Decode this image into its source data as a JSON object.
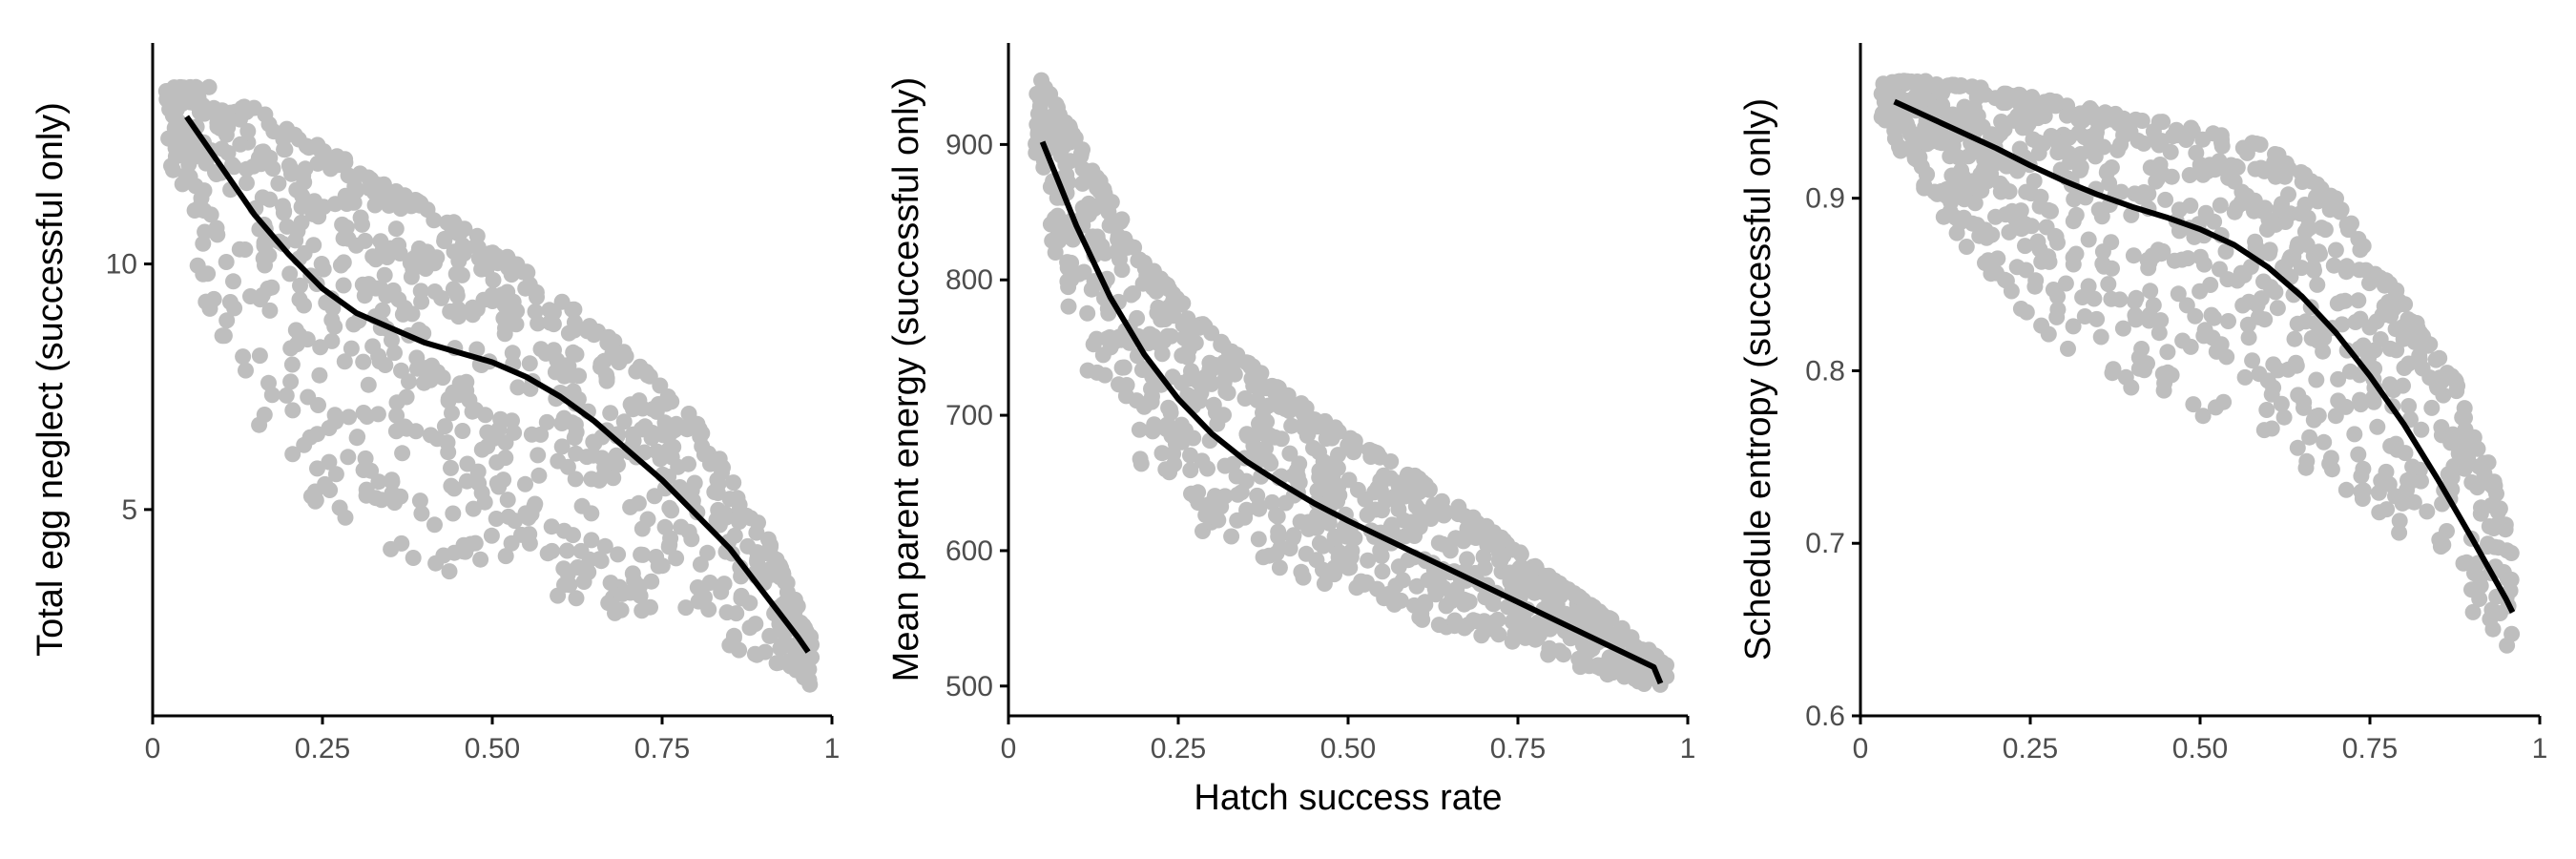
{
  "figure": {
    "xlabel": "Hatch success rate"
  },
  "colors": {
    "points": "#bebebe",
    "line": "#000000",
    "axis": "#000000",
    "tick_text": "#4d4d4d"
  },
  "chart_data": [
    {
      "type": "scatter",
      "ylabel": "Total egg neglect (successful only)",
      "xlim": [
        0,
        1
      ],
      "ylim": [
        0.8,
        14.5
      ],
      "xticks": [
        0,
        0.25,
        0.5,
        0.75,
        1
      ],
      "xtick_labels": [
        "0",
        "0.25",
        "0.50",
        "0.75",
        "1"
      ],
      "yticks": [
        5,
        10
      ],
      "ytick_labels": [
        "5",
        "10"
      ],
      "trend": {
        "x": [
          0.05,
          0.1,
          0.15,
          0.2,
          0.25,
          0.3,
          0.35,
          0.4,
          0.45,
          0.5,
          0.55,
          0.6,
          0.65,
          0.7,
          0.75,
          0.8,
          0.85,
          0.9,
          0.95,
          0.965
        ],
        "y": [
          13.0,
          12.0,
          11.0,
          10.2,
          9.5,
          9.0,
          8.7,
          8.4,
          8.2,
          8.0,
          7.7,
          7.3,
          6.8,
          6.2,
          5.6,
          4.9,
          4.2,
          3.3,
          2.4,
          2.1
        ]
      },
      "envelope": {
        "x": [
          0.02,
          0.1,
          0.2,
          0.3,
          0.4,
          0.5,
          0.6,
          0.7,
          0.8,
          0.9,
          0.97
        ],
        "upper": [
          13.6,
          13.6,
          12.8,
          12.0,
          11.2,
          10.4,
          9.3,
          8.2,
          6.8,
          4.6,
          2.4
        ],
        "lower": [
          12.4,
          8.0,
          5.5,
          4.5,
          3.8,
          3.6,
          3.2,
          2.8,
          2.3,
          2.0,
          1.4
        ]
      },
      "seed": 11
    },
    {
      "type": "scatter",
      "ylabel": "Mean parent energy (successful only)",
      "xlim": [
        0,
        1
      ],
      "ylim": [
        478,
        975
      ],
      "xticks": [
        0,
        0.25,
        0.5,
        0.75,
        1
      ],
      "xtick_labels": [
        "0",
        "0.25",
        "0.50",
        "0.75",
        "1"
      ],
      "yticks": [
        500,
        600,
        700,
        800,
        900
      ],
      "ytick_labels": [
        "500",
        "600",
        "700",
        "800",
        "900"
      ],
      "trend": {
        "x": [
          0.05,
          0.1,
          0.15,
          0.2,
          0.25,
          0.3,
          0.35,
          0.4,
          0.45,
          0.5,
          0.55,
          0.6,
          0.65,
          0.7,
          0.75,
          0.8,
          0.85,
          0.9,
          0.95,
          0.96
        ],
        "y": [
          902,
          840,
          787,
          745,
          712,
          686,
          666,
          650,
          635,
          622,
          610,
          598,
          586,
          574,
          562,
          550,
          538,
          526,
          514,
          502
        ]
      },
      "envelope": {
        "x": [
          0.04,
          0.1,
          0.2,
          0.3,
          0.4,
          0.5,
          0.6,
          0.7,
          0.8,
          0.9,
          0.97
        ],
        "upper": [
          955,
          905,
          815,
          760,
          720,
          685,
          655,
          620,
          580,
          545,
          515
        ],
        "lower": [
          885,
          745,
          660,
          605,
          585,
          570,
          548,
          535,
          520,
          505,
          498
        ]
      },
      "seed": 23
    },
    {
      "type": "scatter",
      "ylabel": "Schedule entropy (successful only)",
      "xlim": [
        0,
        1
      ],
      "ylim": [
        0.6,
        0.99
      ],
      "xticks": [
        0,
        0.25,
        0.5,
        0.75,
        1
      ],
      "xtick_labels": [
        "0",
        "0.25",
        "0.50",
        "0.75",
        "1"
      ],
      "yticks": [
        0.6,
        0.7,
        0.8,
        0.9
      ],
      "ytick_labels": [
        "0.6",
        "0.7",
        "0.8",
        "0.9"
      ],
      "trend": {
        "x": [
          0.05,
          0.1,
          0.15,
          0.2,
          0.25,
          0.3,
          0.35,
          0.4,
          0.45,
          0.5,
          0.55,
          0.6,
          0.65,
          0.7,
          0.75,
          0.8,
          0.85,
          0.9,
          0.95,
          0.96
        ],
        "y": [
          0.956,
          0.947,
          0.938,
          0.929,
          0.919,
          0.91,
          0.902,
          0.895,
          0.889,
          0.882,
          0.873,
          0.86,
          0.843,
          0.822,
          0.797,
          0.769,
          0.737,
          0.703,
          0.668,
          0.66
        ]
      },
      "envelope": {
        "x": [
          0.03,
          0.1,
          0.2,
          0.3,
          0.4,
          0.5,
          0.6,
          0.7,
          0.75,
          0.8,
          0.9,
          0.96
        ],
        "upper": [
          0.968,
          0.968,
          0.963,
          0.955,
          0.948,
          0.94,
          0.93,
          0.9,
          0.87,
          0.84,
          0.78,
          0.7
        ],
        "lower": [
          0.94,
          0.9,
          0.85,
          0.81,
          0.785,
          0.77,
          0.755,
          0.73,
          0.72,
          0.7,
          0.66,
          0.62
        ]
      },
      "seed": 37
    }
  ]
}
